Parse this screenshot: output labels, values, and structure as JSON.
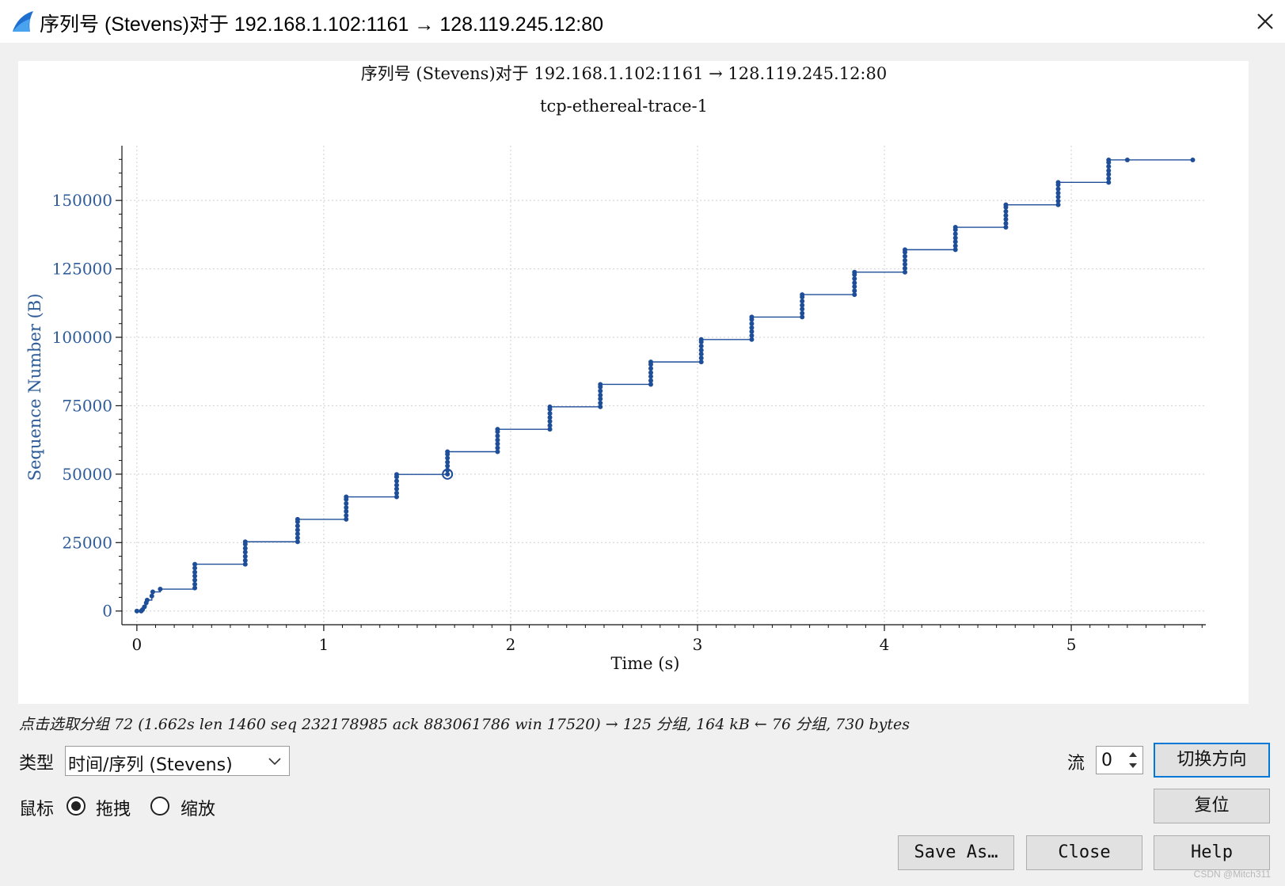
{
  "window": {
    "title": "序列号 (Stevens)对于 192.168.1.102:1161 → 128.119.245.12:80"
  },
  "plot": {
    "title": "序列号 (Stevens)对于 192.168.1.102:1161 → 128.119.245.12:80",
    "subtitle": "tcp-ethereal-trace-1"
  },
  "chart_data": {
    "type": "scatter",
    "title": "序列号 (Stevens)对于 192.168.1.102:1161 → 128.119.245.12:80",
    "subtitle": "tcp-ethereal-trace-1",
    "xlabel": "Time (s)",
    "ylabel": "Sequence Number (B)",
    "xlim": [
      -0.08,
      5.72
    ],
    "ylim": [
      -5000,
      170000
    ],
    "xticks": [
      0,
      1,
      2,
      3,
      4,
      5
    ],
    "yticks": [
      0,
      25000,
      50000,
      75000,
      100000,
      125000,
      150000
    ],
    "ytick_labels": [
      "0",
      "25000",
      "50000",
      "75000",
      "100000",
      "125000",
      "150000"
    ],
    "grid": true,
    "series_color": "#1f4e99",
    "selected_point": {
      "x": 1.662,
      "y": 50000
    },
    "points": [
      [
        0.0,
        0
      ],
      [
        0.023,
        0
      ],
      [
        0.03,
        500
      ],
      [
        0.04,
        1500
      ],
      [
        0.05,
        3000
      ],
      [
        0.055,
        4000
      ],
      [
        0.08,
        5500
      ],
      [
        0.085,
        7000
      ],
      [
        0.125,
        8000
      ],
      [
        0.31,
        8400
      ],
      [
        0.31,
        9800
      ],
      [
        0.31,
        11300
      ],
      [
        0.31,
        12800
      ],
      [
        0.31,
        14200
      ],
      [
        0.31,
        15700
      ],
      [
        0.31,
        17100
      ],
      [
        0.58,
        17100
      ],
      [
        0.58,
        18500
      ],
      [
        0.58,
        20000
      ],
      [
        0.58,
        21500
      ],
      [
        0.58,
        22900
      ],
      [
        0.58,
        24400
      ],
      [
        0.58,
        25300
      ],
      [
        0.86,
        25300
      ],
      [
        0.86,
        26700
      ],
      [
        0.86,
        28200
      ],
      [
        0.86,
        29600
      ],
      [
        0.86,
        31100
      ],
      [
        0.86,
        32600
      ],
      [
        0.86,
        33500
      ],
      [
        1.12,
        33500
      ],
      [
        1.12,
        34900
      ],
      [
        1.12,
        36400
      ],
      [
        1.12,
        37800
      ],
      [
        1.12,
        39300
      ],
      [
        1.12,
        40800
      ],
      [
        1.12,
        41700
      ],
      [
        1.39,
        41700
      ],
      [
        1.39,
        43100
      ],
      [
        1.39,
        44600
      ],
      [
        1.39,
        46000
      ],
      [
        1.39,
        47500
      ],
      [
        1.39,
        49000
      ],
      [
        1.39,
        49900
      ],
      [
        1.662,
        50000
      ],
      [
        1.662,
        51500
      ],
      [
        1.662,
        53000
      ],
      [
        1.662,
        54400
      ],
      [
        1.662,
        55900
      ],
      [
        1.662,
        57300
      ],
      [
        1.662,
        58200
      ],
      [
        1.93,
        58200
      ],
      [
        1.93,
        59600
      ],
      [
        1.93,
        61100
      ],
      [
        1.93,
        62500
      ],
      [
        1.93,
        64000
      ],
      [
        1.93,
        65500
      ],
      [
        1.93,
        66400
      ],
      [
        2.21,
        66400
      ],
      [
        2.21,
        67800
      ],
      [
        2.21,
        69300
      ],
      [
        2.21,
        70700
      ],
      [
        2.21,
        72200
      ],
      [
        2.21,
        73700
      ],
      [
        2.21,
        74600
      ],
      [
        2.48,
        74600
      ],
      [
        2.48,
        76000
      ],
      [
        2.48,
        77500
      ],
      [
        2.48,
        78900
      ],
      [
        2.48,
        80400
      ],
      [
        2.48,
        81900
      ],
      [
        2.48,
        82800
      ],
      [
        2.75,
        82800
      ],
      [
        2.75,
        84200
      ],
      [
        2.75,
        85700
      ],
      [
        2.75,
        87100
      ],
      [
        2.75,
        88600
      ],
      [
        2.75,
        90100
      ],
      [
        2.75,
        91000
      ],
      [
        3.02,
        91000
      ],
      [
        3.02,
        92400
      ],
      [
        3.02,
        93900
      ],
      [
        3.02,
        95300
      ],
      [
        3.02,
        96800
      ],
      [
        3.02,
        98300
      ],
      [
        3.02,
        99200
      ],
      [
        3.29,
        99200
      ],
      [
        3.29,
        100600
      ],
      [
        3.29,
        102100
      ],
      [
        3.29,
        103500
      ],
      [
        3.29,
        105000
      ],
      [
        3.29,
        106500
      ],
      [
        3.29,
        107400
      ],
      [
        3.56,
        107400
      ],
      [
        3.56,
        108800
      ],
      [
        3.56,
        110300
      ],
      [
        3.56,
        111700
      ],
      [
        3.56,
        113200
      ],
      [
        3.56,
        114700
      ],
      [
        3.56,
        115600
      ],
      [
        3.84,
        115600
      ],
      [
        3.84,
        117000
      ],
      [
        3.84,
        118500
      ],
      [
        3.84,
        119900
      ],
      [
        3.84,
        121400
      ],
      [
        3.84,
        122900
      ],
      [
        3.84,
        123800
      ],
      [
        4.11,
        123800
      ],
      [
        4.11,
        125200
      ],
      [
        4.11,
        126700
      ],
      [
        4.11,
        128100
      ],
      [
        4.11,
        129600
      ],
      [
        4.11,
        131100
      ],
      [
        4.11,
        132000
      ],
      [
        4.38,
        132000
      ],
      [
        4.38,
        133400
      ],
      [
        4.38,
        134900
      ],
      [
        4.38,
        136300
      ],
      [
        4.38,
        137800
      ],
      [
        4.38,
        139300
      ],
      [
        4.38,
        140200
      ],
      [
        4.65,
        140200
      ],
      [
        4.65,
        141600
      ],
      [
        4.65,
        143100
      ],
      [
        4.65,
        144500
      ],
      [
        4.65,
        146000
      ],
      [
        4.65,
        147500
      ],
      [
        4.65,
        148400
      ],
      [
        4.93,
        148400
      ],
      [
        4.93,
        149800
      ],
      [
        4.93,
        151300
      ],
      [
        4.93,
        152700
      ],
      [
        4.93,
        154200
      ],
      [
        4.93,
        155700
      ],
      [
        4.93,
        156600
      ],
      [
        5.2,
        156600
      ],
      [
        5.2,
        158000
      ],
      [
        5.2,
        159500
      ],
      [
        5.2,
        160900
      ],
      [
        5.2,
        162400
      ],
      [
        5.2,
        163900
      ],
      [
        5.2,
        164800
      ],
      [
        5.3,
        164800
      ],
      [
        5.65,
        164800
      ]
    ]
  },
  "status": {
    "hint": "点击选取分组 72 (1.662s len 1460 seq 232178985 ack 883061786 win 17520) → 125 分组, 164 kB ← 76 分组, 730 bytes"
  },
  "controls": {
    "type_label": "类型",
    "type_value": "时间/序列 (Stevens)",
    "mouse_label": "鼠标",
    "drag_label": "拖拽",
    "zoom_label": "缩放",
    "mouse_mode": "drag",
    "stream_label": "流",
    "stream_value": "0",
    "switch_direction": "切换方向",
    "reset": "复位",
    "save_as": "Save As…",
    "close": "Close",
    "help": "Help"
  },
  "watermark": "CSDN @Mitch311"
}
